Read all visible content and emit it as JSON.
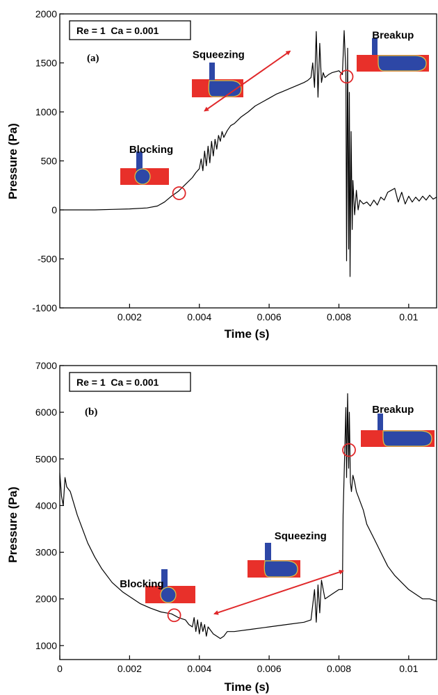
{
  "colors": {
    "line": "#000000",
    "channel": "#e8302a",
    "droplet": "#2d47a6",
    "interface": "#d6c84a",
    "arrow": "#e0282a",
    "marker": "#e0282a"
  },
  "chart_data": [
    {
      "type": "line",
      "panel_label": "(a)",
      "params_text": "Re = 1  Ca = 0.001",
      "xlabel": "Time (s)",
      "ylabel": "Pressure (Pa)",
      "xlim": [
        0,
        0.0108
      ],
      "ylim": [
        -1000,
        2000
      ],
      "xticks": [
        0.002,
        0.004,
        0.006,
        0.008,
        0.01
      ],
      "xtick_labels": [
        "0.002",
        "0.004",
        "0.006",
        "0.008",
        "0.01"
      ],
      "yticks": [
        -1000,
        -500,
        0,
        500,
        1000,
        1500,
        2000
      ],
      "ytick_labels": [
        "-1000",
        "-500",
        "0",
        "500",
        "1000",
        "1500",
        "2000"
      ],
      "grid": false,
      "series": [
        {
          "x": [
            0,
            0.0005,
            0.001,
            0.0015,
            0.002,
            0.0025,
            0.0028,
            0.003,
            0.0032,
            0.0034,
            0.0036,
            0.0038,
            0.0039,
            0.004,
            0.00405,
            0.0041,
            0.00415,
            0.0042,
            0.00425,
            0.0043,
            0.00435,
            0.0044,
            0.00445,
            0.0045,
            0.00455,
            0.0046,
            0.00465,
            0.0047,
            0.0048,
            0.0049,
            0.005,
            0.0052,
            0.0054,
            0.0056,
            0.0058,
            0.006,
            0.0062,
            0.0064,
            0.0066,
            0.0068,
            0.007,
            0.0071,
            0.0072,
            0.00725,
            0.0073,
            0.00735,
            0.0074,
            0.00745,
            0.0075,
            0.00755,
            0.0076,
            0.0077,
            0.0078,
            0.0079,
            0.008,
            0.0081,
            0.00815,
            0.0082,
            0.00822,
            0.00825,
            0.00828,
            0.0083,
            0.00832,
            0.00835,
            0.00838,
            0.0084,
            0.00845,
            0.0085,
            0.00855,
            0.0086,
            0.0087,
            0.0088,
            0.0089,
            0.009,
            0.0091,
            0.0092,
            0.0093,
            0.0094,
            0.0095,
            0.0096,
            0.0097,
            0.0098,
            0.0099,
            0.01,
            0.0101,
            0.0102,
            0.0103,
            0.0104,
            0.0105,
            0.0106,
            0.0107,
            0.0108
          ],
          "y": [
            0,
            0,
            0,
            5,
            10,
            20,
            40,
            80,
            140,
            190,
            260,
            330,
            380,
            420,
            520,
            400,
            600,
            450,
            650,
            480,
            700,
            550,
            720,
            620,
            760,
            700,
            800,
            740,
            810,
            860,
            880,
            950,
            1000,
            1060,
            1100,
            1140,
            1180,
            1210,
            1240,
            1270,
            1300,
            1320,
            1350,
            1500,
            1250,
            1820,
            1150,
            1700,
            1300,
            1400,
            1350,
            1380,
            1400,
            1410,
            1420,
            1380,
            1830,
            1400,
            -520,
            1650,
            -400,
            1200,
            -680,
            800,
            -200,
            300,
            -50,
            200,
            0,
            100,
            60,
            80,
            40,
            100,
            50,
            130,
            100,
            180,
            200,
            220,
            80,
            180,
            60,
            140,
            80,
            130,
            90,
            140,
            100,
            150,
            110,
            130
          ]
        }
      ],
      "annotations": [
        {
          "text": "Blocking",
          "x": 0.00262,
          "y": 580
        },
        {
          "text": "Squeezing",
          "x": 0.00455,
          "y": 1550
        },
        {
          "text": "Breakup",
          "x": 0.00955,
          "y": 1750
        }
      ]
    },
    {
      "type": "line",
      "panel_label": "(b)",
      "params_text": "Re = 1  Ca = 0.001",
      "xlabel": "Time (s)",
      "ylabel": "Pressure (Pa)",
      "xlim": [
        0,
        0.0108
      ],
      "ylim": [
        700,
        7000
      ],
      "xticks": [
        0,
        0.002,
        0.004,
        0.006,
        0.008,
        0.01
      ],
      "xtick_labels": [
        "0",
        "0.002",
        "0.004",
        "0.006",
        "0.008",
        "0.01"
      ],
      "yticks": [
        1000,
        2000,
        3000,
        4000,
        5000,
        6000,
        7000
      ],
      "ytick_labels": [
        "1000",
        "2000",
        "3000",
        "4000",
        "5000",
        "6000",
        "7000"
      ],
      "grid": false,
      "series": [
        {
          "x": [
            0,
            5e-05,
            0.0001,
            0.00015,
            0.0002,
            0.0003,
            0.0005,
            0.0008,
            0.001,
            0.0012,
            0.0015,
            0.0018,
            0.002,
            0.0023,
            0.0026,
            0.0029,
            0.0032,
            0.0034,
            0.0036,
            0.0037,
            0.0038,
            0.00385,
            0.0039,
            0.00395,
            0.004,
            0.00405,
            0.0041,
            0.00415,
            0.0042,
            0.00425,
            0.0043,
            0.0044,
            0.0045,
            0.0046,
            0.0047,
            0.0048,
            0.005,
            0.0055,
            0.006,
            0.0065,
            0.007,
            0.0072,
            0.0073,
            0.00735,
            0.0074,
            0.00745,
            0.0075,
            0.0076,
            0.0078,
            0.008,
            0.0081,
            0.00812,
            0.0082,
            0.00822,
            0.00825,
            0.00828,
            0.0083,
            0.00833,
            0.00836,
            0.0084,
            0.00845,
            0.0085,
            0.0086,
            0.0087,
            0.0088,
            0.009,
            0.0092,
            0.0094,
            0.0096,
            0.0098,
            0.01,
            0.0102,
            0.0104,
            0.0106,
            0.0108
          ],
          "y": [
            4700,
            4200,
            4000,
            4600,
            4400,
            4300,
            3800,
            3200,
            2900,
            2650,
            2350,
            2150,
            2050,
            1900,
            1800,
            1720,
            1680,
            1600,
            1550,
            1450,
            1400,
            1600,
            1300,
            1550,
            1250,
            1500,
            1300,
            1450,
            1200,
            1400,
            1350,
            1250,
            1200,
            1150,
            1200,
            1300,
            1300,
            1350,
            1400,
            1450,
            1500,
            1550,
            2200,
            1500,
            2300,
            1700,
            2400,
            2000,
            2100,
            2200,
            2200,
            3800,
            6100,
            4600,
            6400,
            4800,
            6000,
            4500,
            4300,
            4650,
            4500,
            4300,
            4100,
            3900,
            3600,
            3300,
            3000,
            2700,
            2500,
            2350,
            2200,
            2100,
            2000,
            2000,
            1950
          ]
        }
      ],
      "annotations": [
        {
          "text": "Blocking",
          "x": 0.00235,
          "y": 2250
        },
        {
          "text": "Squeezing",
          "x": 0.0069,
          "y": 3280
        },
        {
          "text": "Breakup",
          "x": 0.00955,
          "y": 5990
        }
      ]
    }
  ]
}
